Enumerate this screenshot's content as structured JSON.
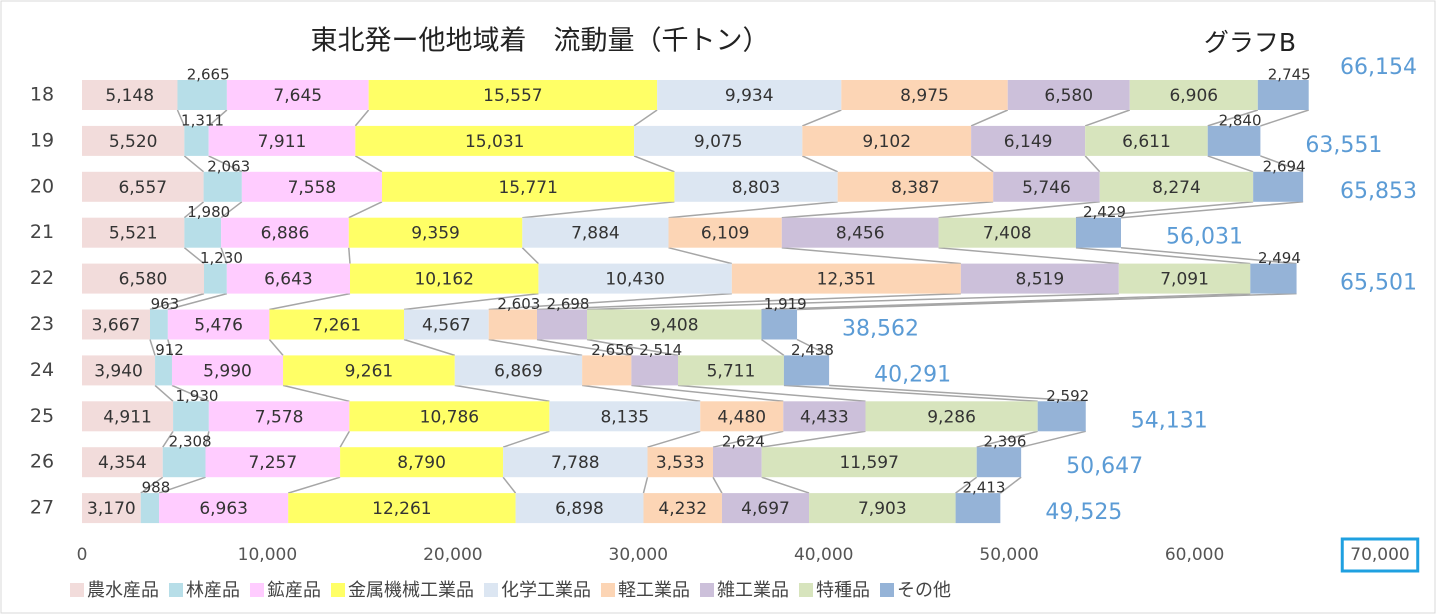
{
  "chart_data": {
    "type": "stacked_bar_horizontal",
    "title": "東北発ー他地域着　流動量（千トン）",
    "subtitle": "グラフB",
    "categories": [
      "18",
      "19",
      "20",
      "21",
      "22",
      "23",
      "24",
      "25",
      "26",
      "27"
    ],
    "series": [
      {
        "name": "農水産品",
        "color": "#f2dcdb",
        "values": [
          5148,
          5520,
          6557,
          5521,
          6580,
          3667,
          3940,
          4911,
          4354,
          3170
        ],
        "value_labels": [
          "5,148",
          "5,520",
          "6,557",
          "5,521",
          "6,580",
          "3,667",
          "3,940",
          "4,911",
          "4,354",
          "3,170"
        ]
      },
      {
        "name": "林産品",
        "color": "#b7dee8",
        "values": [
          2665,
          1311,
          2063,
          1980,
          1230,
          963,
          912,
          1930,
          2308,
          988
        ],
        "value_labels": [
          "2,665",
          "1,311",
          "2,063",
          "1,980",
          "1,230",
          "963",
          "912",
          "1,930",
          "2,308",
          "988"
        ]
      },
      {
        "name": "鉱産品",
        "color": "#ffccff",
        "values": [
          7645,
          7911,
          7558,
          6886,
          6643,
          5476,
          5990,
          7578,
          7257,
          6963
        ],
        "value_labels": [
          "7,645",
          "7,911",
          "7,558",
          "6,886",
          "6,643",
          "5,476",
          "5,990",
          "7,578",
          "7,257",
          "6,963"
        ]
      },
      {
        "name": "金属機械工業品",
        "color": "#ffff66",
        "values": [
          15557,
          15031,
          15771,
          9359,
          10162,
          7261,
          9261,
          10786,
          8790,
          12261
        ],
        "value_labels": [
          "15,557",
          "15,031",
          "15,771",
          "9,359",
          "10,162",
          "7,261",
          "9,261",
          "10,786",
          "8,790",
          "12,261"
        ]
      },
      {
        "name": "化学工業品",
        "color": "#dce6f2",
        "values": [
          9934,
          9075,
          8803,
          7884,
          10430,
          4567,
          6869,
          8135,
          7788,
          6898
        ],
        "value_labels": [
          "9,934",
          "9,075",
          "8,803",
          "7,884",
          "10,430",
          "4,567",
          "6,869",
          "8,135",
          "7,788",
          "6,898"
        ]
      },
      {
        "name": "軽工業品",
        "color": "#fcd5b5",
        "values": [
          8975,
          9102,
          8387,
          6109,
          12351,
          2603,
          2656,
          4480,
          3533,
          4232
        ],
        "value_labels": [
          "8,975",
          "9,102",
          "8,387",
          "6,109",
          "12,351",
          "2,603",
          "2,656",
          "4,480",
          "3,533",
          "4,232"
        ]
      },
      {
        "name": "雑工業品",
        "color": "#ccc0da",
        "values": [
          6580,
          6149,
          5746,
          8456,
          8519,
          2698,
          2514,
          4433,
          2624,
          4697
        ],
        "value_labels": [
          "6,580",
          "6,149",
          "5,746",
          "8,456",
          "8,519",
          "2,698",
          "2,514",
          "4,433",
          "2,624",
          "4,697"
        ]
      },
      {
        "name": "特種品",
        "color": "#d7e4bd",
        "values": [
          6906,
          6611,
          8274,
          7408,
          7091,
          9408,
          5711,
          9286,
          11597,
          7903
        ],
        "value_labels": [
          "6,906",
          "6,611",
          "8,274",
          "7,408",
          "7,091",
          "9,408",
          "5,711",
          "9,286",
          "11,597",
          "7,903"
        ]
      },
      {
        "name": "その他",
        "color": "#95b3d7",
        "values": [
          2745,
          2840,
          2694,
          2429,
          2494,
          1919,
          2438,
          2592,
          2396,
          2413
        ],
        "value_labels": [
          "2,745",
          "2,840",
          "2,694",
          "2,429",
          "2,494",
          "1,919",
          "2,438",
          "2,592",
          "2,396",
          "2,413"
        ]
      }
    ],
    "totals": {
      "values": [
        66154,
        63551,
        65853,
        56031,
        65501,
        38562,
        40291,
        54131,
        50647,
        49525
      ],
      "value_labels": [
        "66,154",
        "63,551",
        "65,853",
        "56,031",
        "65,501",
        "38,562",
        "40,291",
        "54,131",
        "50,647",
        "49,525"
      ]
    },
    "xlim": [
      0,
      70000
    ],
    "xticks": [
      0,
      {
        "value": 10000,
        "label": "10,000"
      },
      {
        "value": 20000,
        "label": "20,000"
      },
      {
        "value": 30000,
        "label": "30,000"
      },
      {
        "value": 40000,
        "label": "40,000"
      },
      {
        "value": 50000,
        "label": "50,000"
      },
      {
        "value": 60000,
        "label": "60,000"
      },
      {
        "value": 70000,
        "label": "70,000"
      }
    ],
    "legend": "bottom"
  }
}
